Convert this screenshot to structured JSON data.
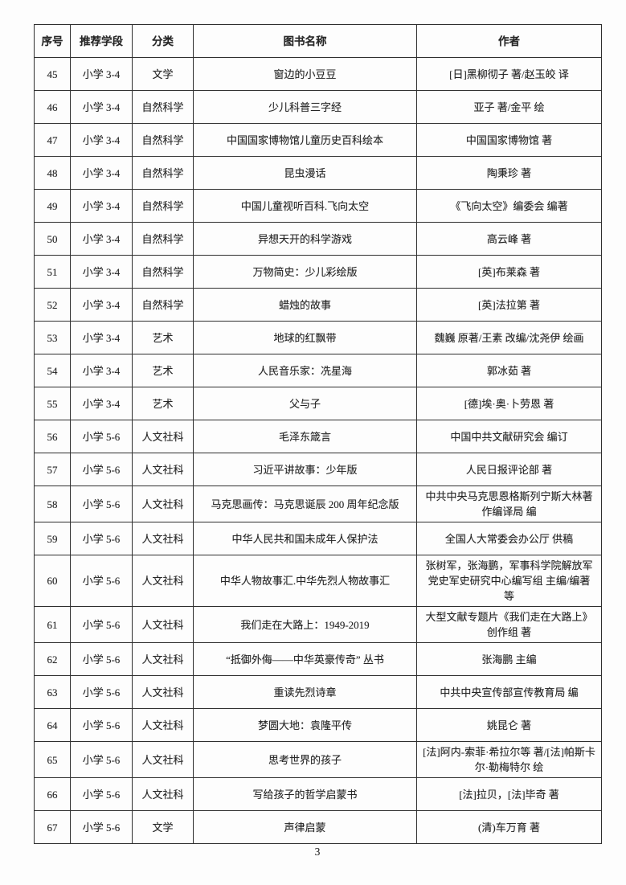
{
  "page": {
    "number": "3"
  },
  "table": {
    "columns": [
      {
        "key": "index",
        "label": "序号"
      },
      {
        "key": "grade",
        "label": "推荐学段"
      },
      {
        "key": "category",
        "label": "分类"
      },
      {
        "key": "title",
        "label": "图书名称"
      },
      {
        "key": "author",
        "label": "作者"
      }
    ],
    "rows": [
      {
        "index": "45",
        "grade": "小学 3-4",
        "category": "文学",
        "title": "窗边的小豆豆",
        "author": "[日]黑柳彻子 著/赵玉皎 译"
      },
      {
        "index": "46",
        "grade": "小学 3-4",
        "category": "自然科学",
        "title": "少儿科普三字经",
        "author": "亚子 著/金平 绘"
      },
      {
        "index": "47",
        "grade": "小学 3-4",
        "category": "自然科学",
        "title": "中国国家博物馆儿童历史百科绘本",
        "author": "中国国家博物馆 著"
      },
      {
        "index": "48",
        "grade": "小学 3-4",
        "category": "自然科学",
        "title": "昆虫漫话",
        "author": "陶秉珍 著"
      },
      {
        "index": "49",
        "grade": "小学 3-4",
        "category": "自然科学",
        "title": "中国儿童视听百科.飞向太空",
        "author": "《飞向太空》编委会 编著"
      },
      {
        "index": "50",
        "grade": "小学 3-4",
        "category": "自然科学",
        "title": "异想天开的科学游戏",
        "author": "高云峰 著"
      },
      {
        "index": "51",
        "grade": "小学 3-4",
        "category": "自然科学",
        "title": "万物简史：少儿彩绘版",
        "author": "[英]布莱森 著"
      },
      {
        "index": "52",
        "grade": "小学 3-4",
        "category": "自然科学",
        "title": "蜡烛的故事",
        "author": "[英]法拉第 著"
      },
      {
        "index": "53",
        "grade": "小学 3-4",
        "category": "艺术",
        "title": "地球的红飘带",
        "author": "魏巍 原著/王素 改编/沈尧伊 绘画"
      },
      {
        "index": "54",
        "grade": "小学 3-4",
        "category": "艺术",
        "title": "人民音乐家：冼星海",
        "author": "郭冰茹 著"
      },
      {
        "index": "55",
        "grade": "小学 3-4",
        "category": "艺术",
        "title": "父与子",
        "author": "[德]埃·奥·卜劳恩 著"
      },
      {
        "index": "56",
        "grade": "小学 5-6",
        "category": "人文社科",
        "title": "毛泽东箴言",
        "author": "中国中共文献研究会 编订"
      },
      {
        "index": "57",
        "grade": "小学 5-6",
        "category": "人文社科",
        "title": "习近平讲故事：少年版",
        "author": "人民日报评论部 著"
      },
      {
        "index": "58",
        "grade": "小学 5-6",
        "category": "人文社科",
        "title": "马克思画传：马克思诞辰 200 周年纪念版",
        "author": "中共中央马克思恩格斯列宁斯大林著作编译局 编"
      },
      {
        "index": "59",
        "grade": "小学 5-6",
        "category": "人文社科",
        "title": "中华人民共和国未成年人保护法",
        "author": "全国人大常委会办公厅 供稿"
      },
      {
        "index": "60",
        "grade": "小学 5-6",
        "category": "人文社科",
        "title": "中华人物故事汇.中华先烈人物故事汇",
        "author": "张树军，张海鹏，军事科学院解放军党史军史研究中心编写组 主编/编著 等"
      },
      {
        "index": "61",
        "grade": "小学 5-6",
        "category": "人文社科",
        "title": "我们走在大路上：1949-2019",
        "author": "大型文献专题片《我们走在大路上》创作组 著"
      },
      {
        "index": "62",
        "grade": "小学 5-6",
        "category": "人文社科",
        "title": "“抵御外侮——中华英豪传奇” 丛书",
        "author": "张海鹏 主编"
      },
      {
        "index": "63",
        "grade": "小学 5-6",
        "category": "人文社科",
        "title": "重读先烈诗章",
        "author": "中共中央宣传部宣传教育局 编"
      },
      {
        "index": "64",
        "grade": "小学 5-6",
        "category": "人文社科",
        "title": "梦圆大地：袁隆平传",
        "author": "姚昆仑 著"
      },
      {
        "index": "65",
        "grade": "小学 5-6",
        "category": "人文社科",
        "title": "思考世界的孩子",
        "author": "[法]阿内-索菲·希拉尔等 著/[法]帕斯卡尔·勒梅特尔 绘"
      },
      {
        "index": "66",
        "grade": "小学 5-6",
        "category": "人文社科",
        "title": "写给孩子的哲学启蒙书",
        "author": "[法]拉贝，[法]毕奇 著"
      },
      {
        "index": "67",
        "grade": "小学 5-6",
        "category": "文学",
        "title": "声律启蒙",
        "author": "(清)车万育 著"
      }
    ]
  }
}
